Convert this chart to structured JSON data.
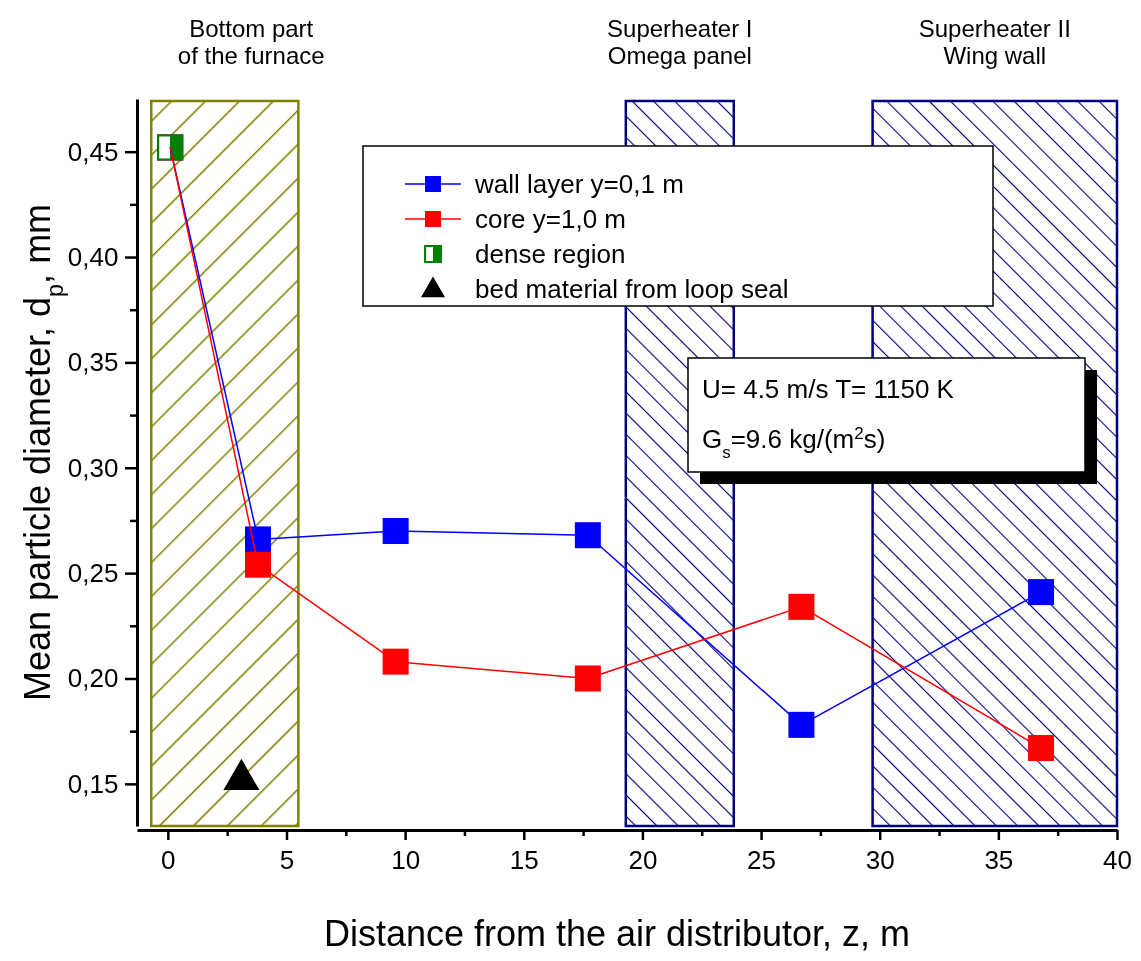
{
  "chart_data": {
    "type": "line",
    "xlabel": "Distance from the air distributor, z, m",
    "ylabel": "Mean particle diameter, d$_{p}$, mm",
    "xlim": [
      -1.3,
      40
    ],
    "ylim": [
      0.13,
      0.475
    ],
    "xticks": [
      0,
      {
        "value": 2.5,
        "label": null
      },
      5,
      {
        "value": 7.5,
        "label": null
      },
      10,
      {
        "value": 12.5,
        "label": null
      },
      15,
      {
        "value": 17.5,
        "label": null
      },
      20,
      {
        "value": 22.5,
        "label": null
      },
      25,
      {
        "value": 27.5,
        "label": null
      },
      30,
      {
        "value": 32.5,
        "label": null
      },
      35,
      {
        "value": 37.5,
        "label": null
      },
      40
    ],
    "yticks": [
      {
        "value": 0.15,
        "label": "0,15"
      },
      {
        "value": 0.175,
        "label": null
      },
      {
        "value": 0.2,
        "label": "0,20"
      },
      {
        "value": 0.225,
        "label": null
      },
      {
        "value": 0.25,
        "label": "0,25"
      },
      {
        "value": 0.275,
        "label": null
      },
      {
        "value": 0.3,
        "label": "0,30"
      },
      {
        "value": 0.325,
        "label": null
      },
      {
        "value": 0.35,
        "label": "0,35"
      },
      {
        "value": 0.375,
        "label": null
      },
      {
        "value": 0.4,
        "label": "0,40"
      },
      {
        "value": 0.425,
        "label": null
      },
      {
        "value": 0.45,
        "label": "0,45"
      }
    ],
    "grid": false,
    "legend": "top right",
    "marker": "square",
    "bands": [
      {
        "axis": "x",
        "from": -0.7,
        "to": 5.5,
        "label": "Bottom part\nof the furnace",
        "color": "#808000"
      },
      {
        "axis": "x",
        "from": 19.3,
        "to": 23.85,
        "label": "Superheater I\nOmega panel",
        "color": "#000080"
      },
      {
        "axis": "x",
        "from": 29.7,
        "to": 40,
        "label": "Superheater II\nWing wall",
        "color": "#000080"
      }
    ],
    "series": [
      {
        "name": "wall layer y=0,1 m",
        "color": "#0000ff",
        "x": [
          0.1,
          3.8,
          9.6,
          17.7,
          26.7,
          36.8
        ],
        "values": [
          0.452,
          0.266,
          0.27,
          0.268,
          0.178,
          0.241
        ]
      },
      {
        "name": "core y=1,0 m",
        "color": "#ff0000",
        "x": [
          0.1,
          3.8,
          9.6,
          17.7,
          26.7,
          36.8
        ],
        "values": [
          0.452,
          0.254,
          0.208,
          0.2,
          0.234,
          0.167
        ]
      },
      {
        "name": "dense region",
        "type": "scatter",
        "color": "#008000",
        "marker": "square",
        "x": [
          0.1
        ],
        "values": [
          0.452
        ]
      },
      {
        "name": "bed material from loop seal",
        "type": "scatter",
        "color": "#000000",
        "marker": "triangle",
        "x": [
          3.1
        ],
        "values": [
          0.153
        ]
      }
    ],
    "annotations": [
      "U= 4.5 m/s T= 1150 K",
      "G$_{s}$=9.6 kg/(m$^{2}$s)"
    ]
  }
}
